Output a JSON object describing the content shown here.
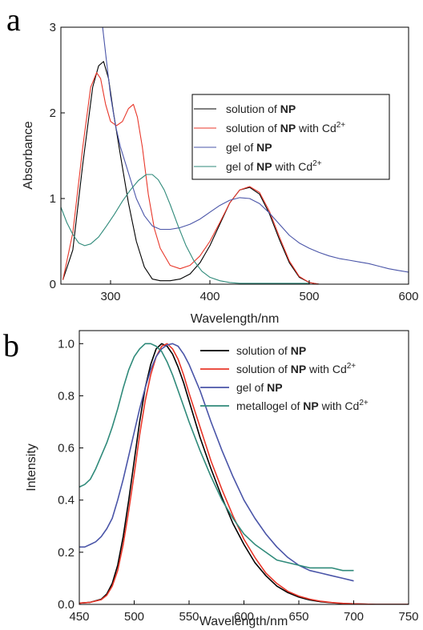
{
  "chart_data": [
    {
      "panel": "a",
      "type": "line",
      "xlabel": "Wavelength/nm",
      "ylabel": "Absorbance",
      "xlim": [
        250,
        600
      ],
      "ylim": [
        0,
        3
      ],
      "xticks": [
        300,
        400,
        500,
        600
      ],
      "yticks": [
        0,
        1,
        2,
        3
      ],
      "legend": "center-right",
      "series": [
        {
          "name_pre": "solution of ",
          "name_bold": "NP",
          "name_post": "",
          "name_sup": "",
          "color": "#000000",
          "x": [
            252,
            262,
            272,
            282,
            288,
            293,
            298,
            303,
            310,
            318,
            326,
            334,
            342,
            350,
            360,
            370,
            380,
            390,
            400,
            410,
            420,
            430,
            440,
            450,
            460,
            470,
            480,
            490,
            500,
            510
          ],
          "y": [
            0.05,
            0.4,
            1.4,
            2.3,
            2.55,
            2.6,
            2.4,
            2.0,
            1.5,
            0.95,
            0.5,
            0.2,
            0.06,
            0.04,
            0.04,
            0.06,
            0.12,
            0.25,
            0.45,
            0.7,
            0.95,
            1.1,
            1.13,
            1.05,
            0.82,
            0.52,
            0.25,
            0.08,
            0.02,
            0.0
          ]
        },
        {
          "name_pre": "solution of ",
          "name_bold": "NP",
          "name_post": " with Cd",
          "name_sup": "2+",
          "color": "#e8372a",
          "x": [
            252,
            262,
            272,
            280,
            286,
            290,
            295,
            300,
            306,
            312,
            318,
            323,
            327,
            332,
            338,
            344,
            350,
            360,
            370,
            380,
            390,
            400,
            410,
            420,
            430,
            440,
            450,
            460,
            470,
            480,
            490,
            500,
            510
          ],
          "y": [
            0.05,
            0.6,
            1.6,
            2.3,
            2.47,
            2.4,
            2.1,
            1.9,
            1.85,
            1.9,
            2.05,
            2.1,
            1.95,
            1.6,
            1.05,
            0.65,
            0.42,
            0.22,
            0.18,
            0.22,
            0.33,
            0.5,
            0.72,
            0.95,
            1.1,
            1.14,
            1.07,
            0.85,
            0.55,
            0.27,
            0.09,
            0.02,
            0.0
          ]
        },
        {
          "name_pre": "gel of ",
          "name_bold": "NP",
          "name_post": "",
          "name_sup": "",
          "color": "#4a55a8",
          "x": [
            292,
            296,
            300,
            305,
            310,
            318,
            326,
            334,
            342,
            350,
            360,
            370,
            380,
            390,
            400,
            410,
            420,
            430,
            440,
            450,
            460,
            470,
            480,
            490,
            500,
            510,
            520,
            530,
            540,
            550,
            560,
            570,
            580,
            590,
            600
          ],
          "y": [
            3.0,
            2.6,
            2.2,
            1.85,
            1.6,
            1.3,
            1.0,
            0.8,
            0.68,
            0.64,
            0.64,
            0.66,
            0.7,
            0.76,
            0.84,
            0.92,
            0.98,
            1.01,
            1.0,
            0.94,
            0.83,
            0.7,
            0.57,
            0.48,
            0.42,
            0.37,
            0.33,
            0.3,
            0.28,
            0.26,
            0.24,
            0.21,
            0.18,
            0.16,
            0.14
          ]
        },
        {
          "name_pre": "gel of ",
          "name_bold": "NP",
          "name_post": " with Cd",
          "name_sup": "2+",
          "color": "#2f8a7a",
          "x": [
            250,
            256,
            262,
            268,
            274,
            280,
            288,
            296,
            304,
            312,
            320,
            328,
            336,
            342,
            348,
            354,
            360,
            368,
            376,
            384,
            392,
            400,
            410,
            420,
            430,
            440,
            460,
            480,
            500
          ],
          "y": [
            0.9,
            0.72,
            0.58,
            0.48,
            0.45,
            0.47,
            0.55,
            0.68,
            0.82,
            0.97,
            1.1,
            1.21,
            1.28,
            1.28,
            1.22,
            1.1,
            0.93,
            0.68,
            0.45,
            0.27,
            0.15,
            0.08,
            0.04,
            0.02,
            0.01,
            0.01,
            0.01,
            0.01,
            0.01
          ]
        }
      ]
    },
    {
      "panel": "b",
      "type": "line",
      "xlabel": "Wavelength/nm",
      "ylabel": "Intensity",
      "xlim": [
        450,
        750
      ],
      "ylim": [
        0,
        1.05
      ],
      "xticks": [
        450,
        500,
        550,
        600,
        650,
        700,
        750
      ],
      "yticks": [
        0.0,
        0.2,
        0.4,
        0.6,
        0.8,
        1.0
      ],
      "legend": "top-right",
      "series": [
        {
          "name_pre": "solution of ",
          "name_bold": "NP",
          "name_post": "",
          "name_sup": "",
          "color": "#000000",
          "x": [
            450,
            460,
            470,
            475,
            480,
            485,
            490,
            495,
            500,
            505,
            510,
            515,
            520,
            525,
            530,
            535,
            540,
            545,
            550,
            560,
            570,
            580,
            590,
            600,
            610,
            620,
            630,
            640,
            650,
            660,
            670,
            680,
            690,
            700,
            720,
            750
          ],
          "y": [
            0.005,
            0.008,
            0.02,
            0.04,
            0.08,
            0.15,
            0.26,
            0.4,
            0.55,
            0.7,
            0.83,
            0.92,
            0.98,
            1.0,
            0.99,
            0.96,
            0.91,
            0.85,
            0.78,
            0.64,
            0.52,
            0.41,
            0.31,
            0.23,
            0.16,
            0.11,
            0.07,
            0.045,
            0.028,
            0.017,
            0.01,
            0.006,
            0.003,
            0.002,
            0.0,
            0.0
          ]
        },
        {
          "name_pre": "solution of ",
          "name_bold": "NP",
          "name_post": " with Cd",
          "name_sup": "2+",
          "color": "#e8372a",
          "x": [
            450,
            460,
            470,
            475,
            480,
            485,
            490,
            495,
            500,
            505,
            510,
            515,
            520,
            525,
            530,
            535,
            540,
            545,
            550,
            560,
            570,
            580,
            590,
            600,
            610,
            620,
            630,
            640,
            650,
            660,
            670,
            680,
            690,
            700,
            720,
            750
          ],
          "y": [
            0.005,
            0.008,
            0.018,
            0.035,
            0.07,
            0.13,
            0.23,
            0.36,
            0.5,
            0.65,
            0.78,
            0.88,
            0.95,
            0.99,
            1.0,
            0.98,
            0.94,
            0.88,
            0.81,
            0.68,
            0.55,
            0.44,
            0.34,
            0.25,
            0.18,
            0.12,
            0.08,
            0.05,
            0.032,
            0.02,
            0.012,
            0.007,
            0.004,
            0.002,
            0.0,
            0.0
          ]
        },
        {
          "name_pre": "gel of ",
          "name_bold": "NP",
          "name_post": "",
          "name_sup": "",
          "color": "#4a55a8",
          "x": [
            450,
            455,
            460,
            465,
            470,
            475,
            480,
            485,
            490,
            495,
            500,
            505,
            510,
            515,
            520,
            525,
            530,
            535,
            540,
            545,
            550,
            560,
            570,
            580,
            590,
            600,
            610,
            620,
            630,
            640,
            650,
            660,
            670,
            680,
            690,
            700
          ],
          "y": [
            0.22,
            0.22,
            0.23,
            0.24,
            0.26,
            0.29,
            0.33,
            0.4,
            0.48,
            0.57,
            0.66,
            0.75,
            0.83,
            0.9,
            0.95,
            0.98,
            0.995,
            1.0,
            0.99,
            0.96,
            0.92,
            0.82,
            0.7,
            0.59,
            0.49,
            0.4,
            0.33,
            0.27,
            0.22,
            0.18,
            0.15,
            0.13,
            0.12,
            0.11,
            0.1,
            0.09
          ]
        },
        {
          "name_pre": "metallogel of ",
          "name_bold": "NP",
          "name_post": " with Cd",
          "name_sup": "2+",
          "color": "#2f8a7a",
          "x": [
            450,
            455,
            460,
            465,
            470,
            475,
            480,
            485,
            490,
            495,
            500,
            505,
            510,
            515,
            520,
            525,
            530,
            535,
            540,
            545,
            550,
            560,
            570,
            580,
            590,
            600,
            610,
            620,
            630,
            640,
            650,
            660,
            670,
            680,
            690,
            700
          ],
          "y": [
            0.45,
            0.46,
            0.48,
            0.52,
            0.57,
            0.62,
            0.68,
            0.75,
            0.83,
            0.9,
            0.95,
            0.98,
            1.0,
            1.0,
            0.99,
            0.97,
            0.93,
            0.88,
            0.82,
            0.76,
            0.7,
            0.59,
            0.49,
            0.4,
            0.33,
            0.27,
            0.23,
            0.2,
            0.17,
            0.16,
            0.15,
            0.14,
            0.14,
            0.14,
            0.13,
            0.13
          ]
        }
      ]
    }
  ]
}
